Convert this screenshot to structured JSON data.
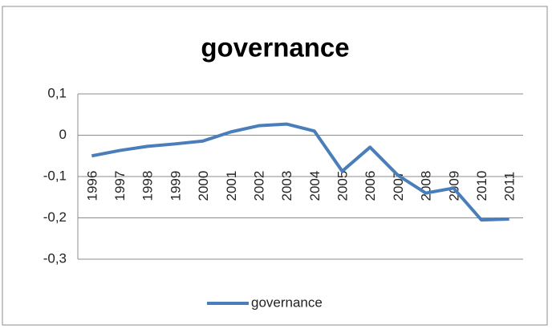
{
  "chart_data": {
    "type": "line",
    "title": "governance",
    "categories": [
      "1996",
      "1997",
      "1998",
      "1999",
      "2000",
      "2001",
      "2002",
      "2003",
      "2004",
      "2005",
      "2006",
      "2007",
      "2008",
      "2009",
      "2010",
      "2011"
    ],
    "series": [
      {
        "name": "governance",
        "color": "#4a7ebb",
        "values": [
          -0.05,
          -0.037,
          -0.027,
          -0.021,
          -0.014,
          0.008,
          0.023,
          0.027,
          0.01,
          -0.087,
          -0.029,
          -0.097,
          -0.14,
          -0.128,
          -0.205,
          -0.203
        ]
      }
    ],
    "ylim": [
      -0.3,
      0.1
    ],
    "yticks": [
      {
        "value": 0.1,
        "label": "0,1"
      },
      0,
      {
        "value": -0.1,
        "label": "-0,1"
      },
      {
        "value": -0.2,
        "label": "-0,2"
      },
      {
        "value": -0.3,
        "label": "-0,3"
      }
    ],
    "grid": true,
    "legend": "bottom"
  }
}
